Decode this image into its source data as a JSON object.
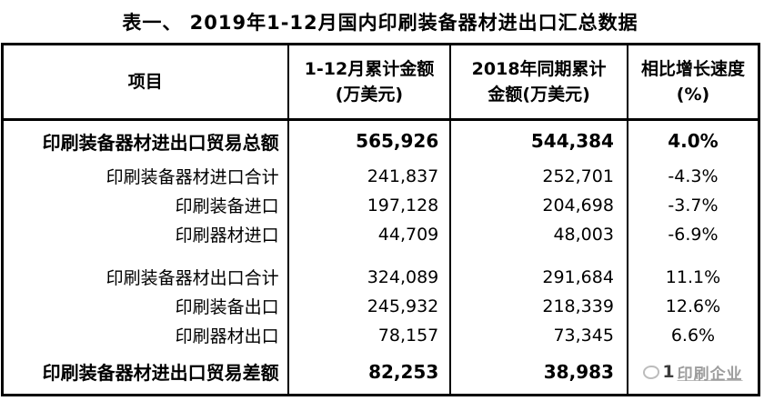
{
  "chart_data": {
    "type": "table",
    "title": "表一、 2019年1-12月国内印刷装备器材进出口汇总数据",
    "columns": [
      {
        "line1": "项目",
        "line2": ""
      },
      {
        "line1": "1-12月累计金额",
        "line2": "(万美元)"
      },
      {
        "line1": "2018年同期累计",
        "line2": "金额(万美元)"
      },
      {
        "line1": "相比增长速度",
        "line2": "(%)"
      }
    ],
    "rows": [
      {
        "label": "印刷装备器材进出口贸易总额",
        "amount_2019": "565,926",
        "amount_2018": "544,384",
        "growth": "4.0%",
        "emphasis": true
      },
      {
        "label": "印刷装备器材进口合计",
        "amount_2019": "241,837",
        "amount_2018": "252,701",
        "growth": "-4.3%",
        "emphasis": false
      },
      {
        "label": "印刷装备进口",
        "amount_2019": "197,128",
        "amount_2018": "204,698",
        "growth": "-3.7%",
        "emphasis": false
      },
      {
        "label": "印刷器材进口",
        "amount_2019": "44,709",
        "amount_2018": "48,003",
        "growth": "-6.9%",
        "emphasis": false
      },
      {
        "spacer": true
      },
      {
        "label": "印刷装备器材出口合计",
        "amount_2019": "324,089",
        "amount_2018": "291,684",
        "growth": "11.1%",
        "emphasis": false
      },
      {
        "label": "印刷装备出口",
        "amount_2019": "245,932",
        "amount_2018": "218,339",
        "growth": "12.6%",
        "emphasis": false
      },
      {
        "label": "印刷器材出口",
        "amount_2019": "78,157",
        "amount_2018": "73,345",
        "growth": "6.6%",
        "emphasis": false
      },
      {
        "label": "印刷装备器材进出口贸易差额",
        "amount_2019": "82,253",
        "amount_2018": "38,983",
        "growth": "",
        "emphasis": true,
        "watermark": {
          "digit": "1",
          "text": "印刷企业"
        }
      }
    ]
  }
}
